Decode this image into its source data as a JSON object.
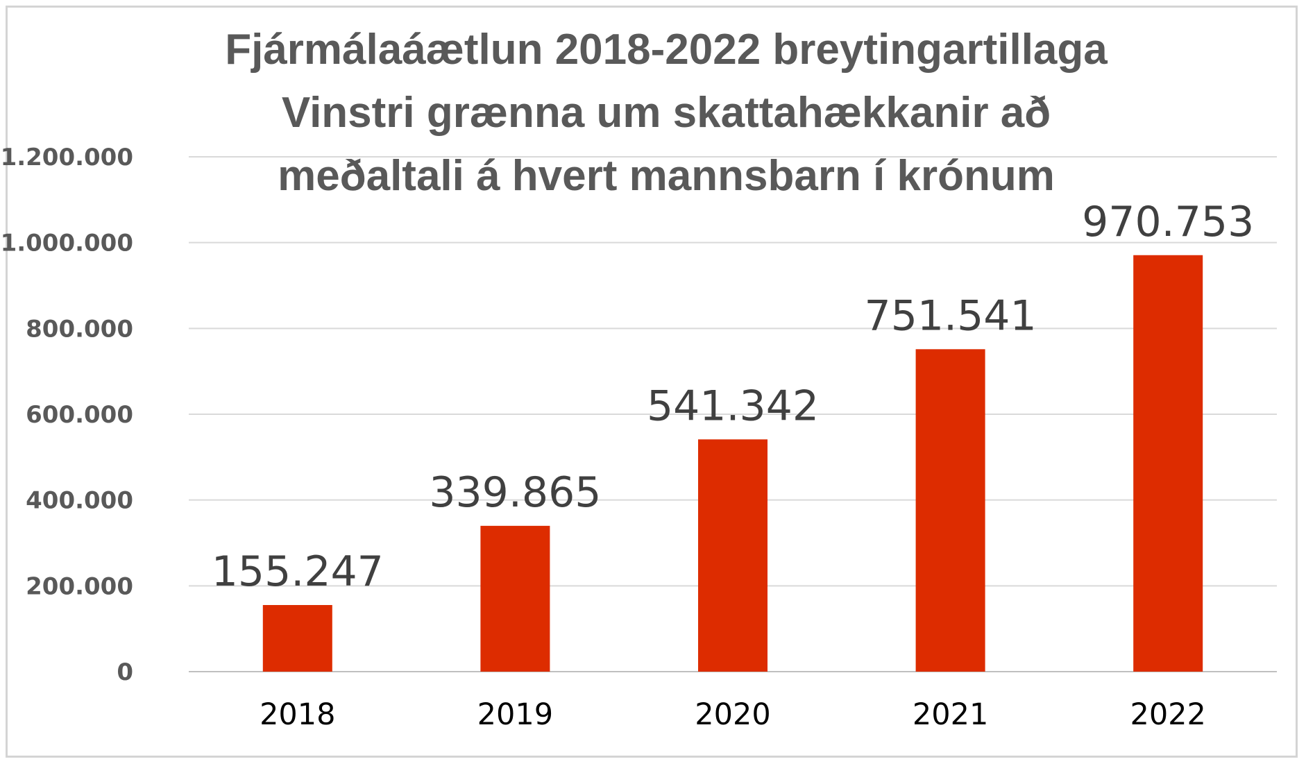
{
  "chart_data": {
    "type": "bar",
    "title_lines": [
      "Fjármálaáætlun 2018-2022 breytingartillaga",
      "Vinstri grænna um skattahækkanir að",
      "meðaltali á hvert mannsbarn í krónum"
    ],
    "categories": [
      "2018",
      "2019",
      "2020",
      "2021",
      "2022"
    ],
    "values": [
      155247,
      339865,
      541342,
      751541,
      970753
    ],
    "data_labels": [
      "155.247",
      "339.865",
      "541.342",
      "751.541",
      "970.753"
    ],
    "y_ticks": [
      0,
      200000,
      400000,
      600000,
      800000,
      1000000,
      1200000
    ],
    "y_tick_labels": [
      "0",
      "200.000",
      "400.000",
      "600.000",
      "800.000",
      "1.000.000",
      "1.200.000"
    ],
    "ylim": [
      0,
      1200000
    ],
    "grid": true,
    "legend": "none",
    "bar_color": "#dd2c00"
  }
}
